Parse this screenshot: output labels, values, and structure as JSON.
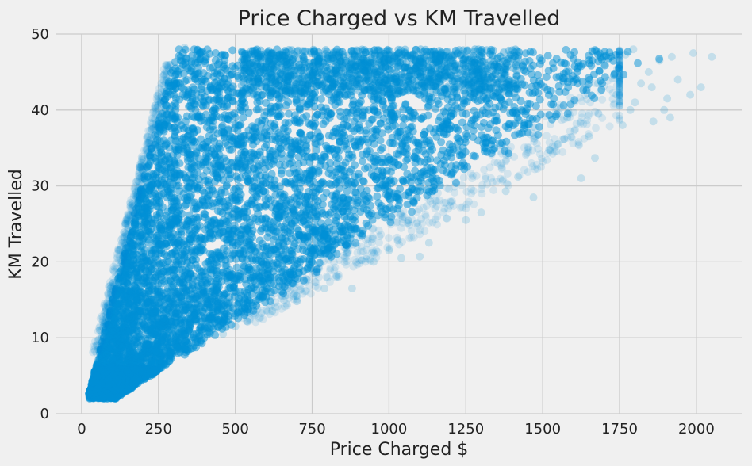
{
  "chart_data": {
    "type": "scatter",
    "title": "Price Charged vs KM Travelled",
    "xlabel": "Price Charged $",
    "ylabel": "KM Travelled",
    "xlim": [
      -85,
      2150
    ],
    "ylim": [
      0,
      50
    ],
    "x_ticks": [
      0,
      250,
      500,
      750,
      1000,
      1250,
      1500,
      1750,
      2000
    ],
    "y_ticks": [
      0,
      10,
      20,
      30,
      40,
      50
    ],
    "grid": true,
    "legend": "none",
    "marker_color": "#008fd5",
    "marker_alpha": 0.12,
    "point_envelope": {
      "description_units": "x = Price Charged $, y = KM Travelled",
      "min_x_at_km_2": 15,
      "max_x_at_km_2": 110,
      "upper_price_per_km_approx": 38,
      "lower_price_per_km_approx": 6.3,
      "min_km": 2,
      "max_km": 48
    },
    "outliers": [
      {
        "x": 2050,
        "y": 47
      },
      {
        "x": 2015,
        "y": 43
      },
      {
        "x": 1990,
        "y": 47.5
      },
      {
        "x": 1980,
        "y": 42
      },
      {
        "x": 1940,
        "y": 44
      },
      {
        "x": 1920,
        "y": 47
      },
      {
        "x": 1915,
        "y": 39
      },
      {
        "x": 1905,
        "y": 41.5
      },
      {
        "x": 1895,
        "y": 40
      },
      {
        "x": 1880,
        "y": 46.5
      },
      {
        "x": 1860,
        "y": 38.5
      },
      {
        "x": 1855,
        "y": 43
      },
      {
        "x": 1845,
        "y": 45
      },
      {
        "x": 1820,
        "y": 43.5
      },
      {
        "x": 1800,
        "y": 41
      },
      {
        "x": 1795,
        "y": 48
      },
      {
        "x": 1785,
        "y": 40
      },
      {
        "x": 1770,
        "y": 47.3
      },
      {
        "x": 1760,
        "y": 38
      },
      {
        "x": 1750,
        "y": 44
      },
      {
        "x": 1740,
        "y": 42
      },
      {
        "x": 1700,
        "y": 46
      },
      {
        "x": 1680,
        "y": 43.5
      },
      {
        "x": 1670,
        "y": 33.7
      },
      {
        "x": 1650,
        "y": 36.5
      },
      {
        "x": 1625,
        "y": 31
      },
      {
        "x": 1580,
        "y": 39
      },
      {
        "x": 1550,
        "y": 35.5
      },
      {
        "x": 1525,
        "y": 34.7
      },
      {
        "x": 1470,
        "y": 28.5
      },
      {
        "x": 1420,
        "y": 31.2
      },
      {
        "x": 1380,
        "y": 29.3
      },
      {
        "x": 1300,
        "y": 26.5
      },
      {
        "x": 1250,
        "y": 25.5
      },
      {
        "x": 1130,
        "y": 22.5
      },
      {
        "x": 1100,
        "y": 20.7
      },
      {
        "x": 1040,
        "y": 20.5
      },
      {
        "x": 1000,
        "y": 21.5
      },
      {
        "x": 950,
        "y": 20
      },
      {
        "x": 880,
        "y": 16.5
      },
      {
        "x": 790,
        "y": 16.5
      },
      {
        "x": 700,
        "y": 15.5
      },
      {
        "x": 620,
        "y": 13.5
      },
      {
        "x": 500,
        "y": 11.5
      },
      {
        "x": 460,
        "y": 10.5
      },
      {
        "x": 335,
        "y": 48.2
      },
      {
        "x": 290,
        "y": 44
      },
      {
        "x": 270,
        "y": 38
      },
      {
        "x": 195,
        "y": 33
      },
      {
        "x": 175,
        "y": 29
      }
    ]
  }
}
